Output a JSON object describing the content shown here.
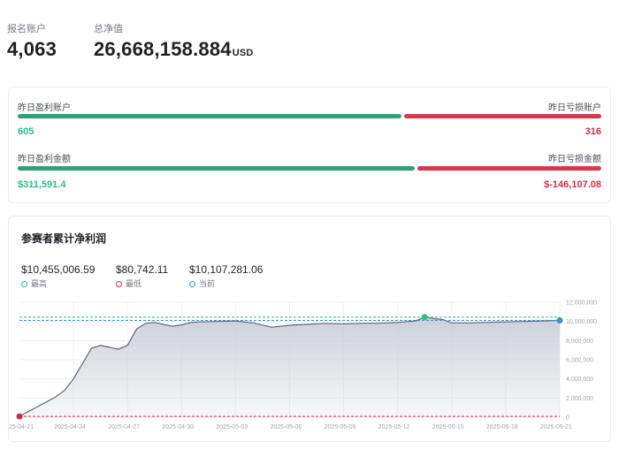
{
  "header": {
    "registered_label": "报名账户",
    "registered_value": "4,063",
    "net_value_label": "总净值",
    "net_value_value": "26,668,158.884",
    "net_value_unit": "USD"
  },
  "pl_card": {
    "profit_accounts_label": "昨日盈利账户",
    "loss_accounts_label": "昨日亏损账户",
    "profit_accounts_value": "605",
    "loss_accounts_value": "316",
    "profit_amount_label": "昨日盈利金额",
    "loss_amount_label": "昨日亏损金额",
    "profit_amount_value": "$311,591.4",
    "loss_amount_value": "$-146,107.08",
    "accounts_profit_fraction": 0.657,
    "amount_profit_fraction": 0.681,
    "colors": {
      "profit": "#2ebd85",
      "loss": "#cf304a"
    }
  },
  "chart_card": {
    "title": "参赛者累计净利润",
    "summary": {
      "high_value": "$10,455,006.59",
      "high_label": "最高",
      "low_value": "$80,742.11",
      "low_label": "最低",
      "current_value": "$10,107,281.06",
      "current_label": "当前"
    }
  },
  "chart_data": {
    "type": "area",
    "title": "参赛者累计净利润",
    "x_ticks": [
      "25-04-21",
      "2025-04-24",
      "2025-04-27",
      "2025-04-30",
      "2025-05-03",
      "2025-05-06",
      "2025-05-09",
      "2025-05-12",
      "2025-05-15",
      "2025-05-18",
      "2025-05-21"
    ],
    "y_ticks": [
      "0",
      "2,000,000",
      "4,000,000",
      "6,000,000",
      "8,000,000",
      "10,000,000",
      "12,000,000"
    ],
    "ylim": [
      0,
      12000000
    ],
    "xlim": [
      0,
      30
    ],
    "series": [
      {
        "x": [
          0,
          0.5,
          1,
          1.5,
          2,
          2.5,
          3,
          3.5,
          4,
          4.5,
          5,
          5.5,
          6,
          6.5,
          7,
          7.5,
          8,
          8.5,
          9,
          9.5,
          10,
          11,
          12,
          13,
          14,
          15,
          16,
          17,
          18,
          19,
          20,
          21,
          22,
          22.5,
          23,
          23.5,
          24,
          25,
          26,
          27,
          28,
          29,
          30
        ],
        "values": [
          80742,
          600000,
          1100000,
          1600000,
          2100000,
          2800000,
          4000000,
          5600000,
          7200000,
          7500000,
          7300000,
          7100000,
          7500000,
          9200000,
          9800000,
          9900000,
          9700000,
          9500000,
          9650000,
          9900000,
          9950000,
          10000000,
          10050000,
          9850000,
          9400000,
          9600000,
          9700000,
          9800000,
          9750000,
          9800000,
          9820000,
          9900000,
          10050000,
          10455006,
          10300000,
          10200000,
          9850000,
          9850000,
          9900000,
          9950000,
          10000000,
          10050000,
          10107281
        ]
      }
    ],
    "high_line": 10455006.59,
    "low_line": 80742.11,
    "current_line": 10107281.06,
    "colors": {
      "line": "#5e6673",
      "fill": "#c9ced7",
      "high": "#2ebd85",
      "low": "#cf304a",
      "current": "#3395d8",
      "grid": "#eef0f3"
    }
  }
}
